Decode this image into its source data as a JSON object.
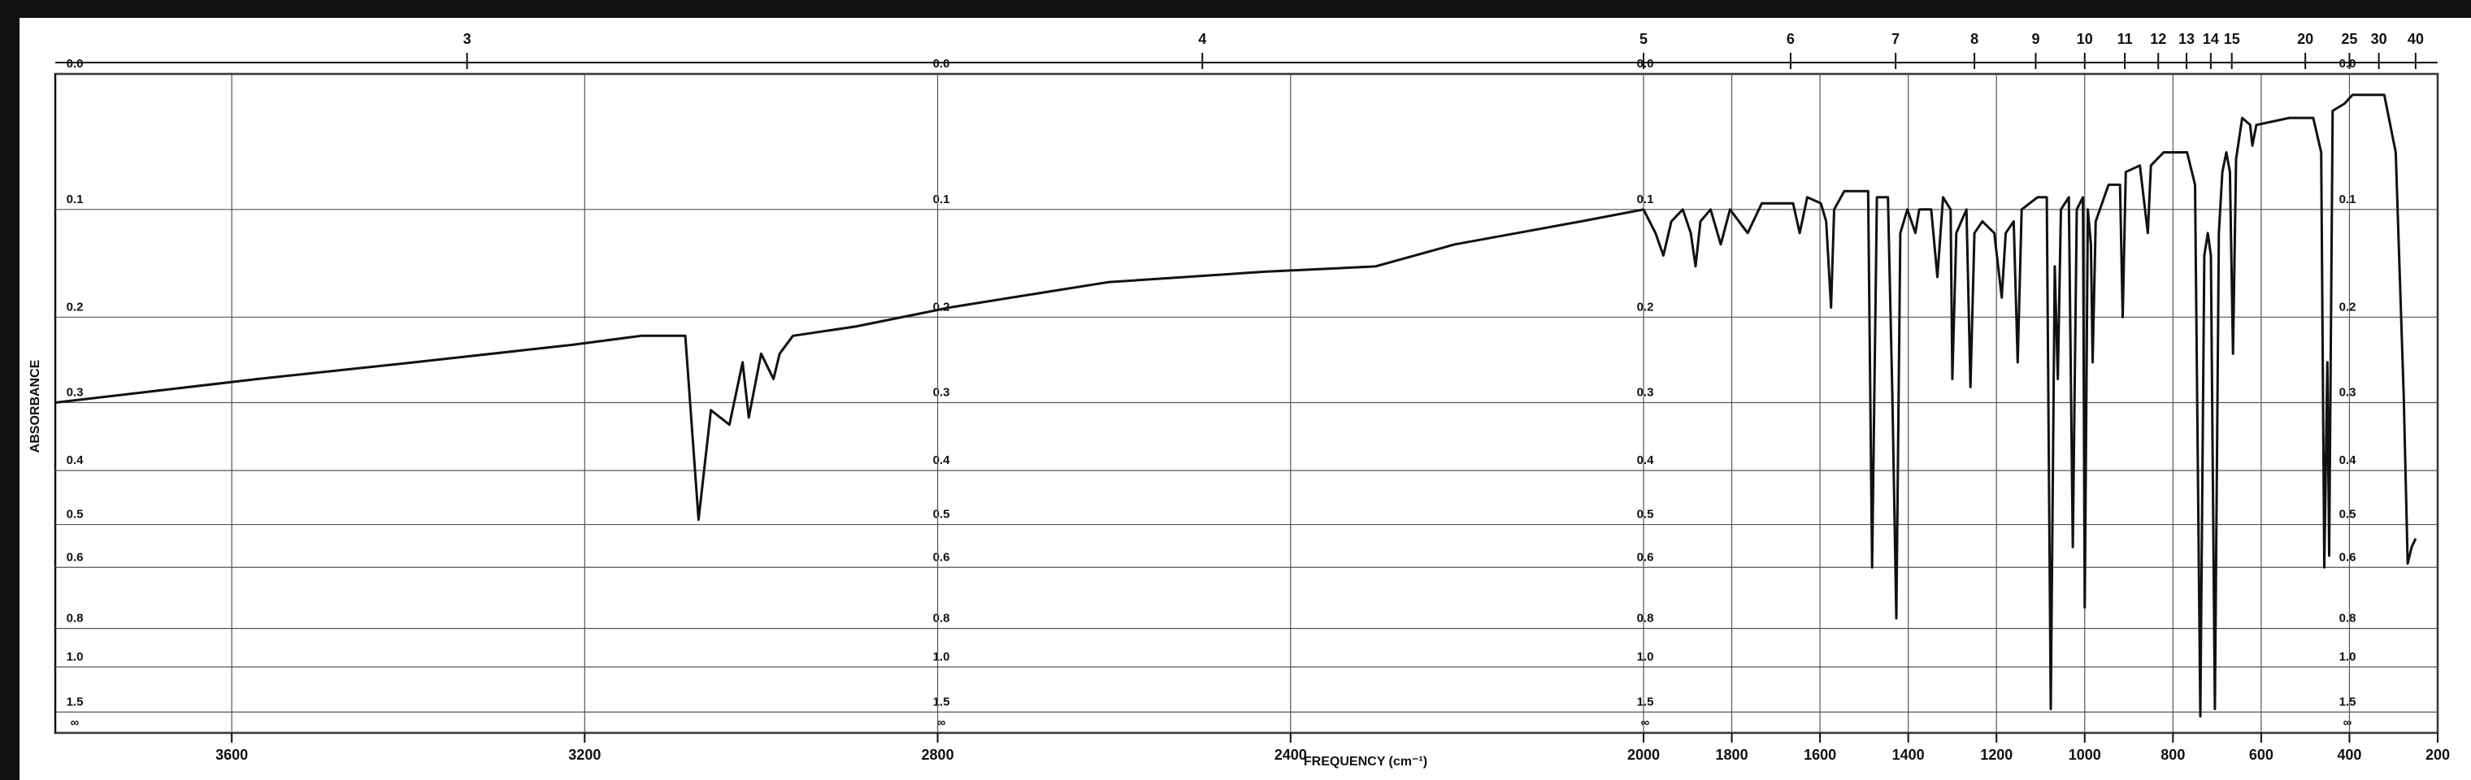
{
  "chart_data": {
    "type": "line",
    "x_label": "FREQUENCY (cm⁻¹)",
    "y_label": "ABSORBANCE",
    "color": "#111111",
    "xlim": [
      3800,
      200
    ],
    "xbreak": 2000,
    "xticks": [
      3600,
      3200,
      2800,
      2400,
      2000,
      1800,
      1600,
      1400,
      1200,
      1000,
      800,
      600,
      400,
      200
    ],
    "x2scale": "wavelength",
    "x2ticks": [
      3,
      4,
      5,
      6,
      7,
      8,
      9,
      10,
      11,
      12,
      13,
      14,
      15,
      20,
      25,
      30,
      40
    ],
    "yscale": "absorbance",
    "ylim": [
      0,
      null
    ],
    "yticks": [
      {
        "value": 0,
        "label": "0.0"
      },
      0.1,
      0.2,
      0.3,
      0.4,
      0.5,
      0.6,
      0.8,
      {
        "value": 1,
        "label": "1.0"
      },
      1.5,
      {
        "value": null,
        "label": "∞"
      }
    ],
    "grid": true,
    "x": [
      3800,
      3571,
      3393,
      3214,
      3136,
      3107,
      3086,
      3071,
      3057,
      3036,
      3021,
      3014,
      3000,
      2986,
      2979,
      2964,
      2893,
      2786,
      2607,
      2429,
      2304,
      2214,
      2071,
      2000,
      1973,
      1955,
      1937,
      1911,
      1893,
      1882,
      1871,
      1848,
      1825,
      1804,
      1764,
      1732,
      1661,
      1646,
      1629,
      1598,
      1586,
      1575,
      1568,
      1545,
      1491,
      1482,
      1471,
      1446,
      1436,
      1427,
      1418,
      1402,
      1384,
      1375,
      1348,
      1334,
      1321,
      1304,
      1300,
      1291,
      1268,
      1259,
      1250,
      1232,
      1205,
      1188,
      1179,
      1161,
      1152,
      1143,
      1107,
      1086,
      1077,
      1068,
      1061,
      1054,
      1036,
      1027,
      1018,
      1004,
      1000,
      993,
      986,
      982,
      975,
      946,
      920,
      914,
      907,
      875,
      857,
      850,
      821,
      768,
      750,
      738,
      729,
      721,
      714,
      705,
      696,
      688,
      679,
      671,
      664,
      657,
      643,
      625,
      620,
      611,
      536,
      482,
      464,
      457,
      450,
      446,
      438,
      411,
      393,
      321,
      295,
      277,
      268,
      259,
      250
    ],
    "values": [
      0.3,
      0.27,
      0.25,
      0.23,
      0.22,
      0.22,
      0.22,
      0.49,
      0.31,
      0.33,
      0.25,
      0.32,
      0.24,
      0.27,
      0.24,
      0.22,
      0.21,
      0.19,
      0.165,
      0.155,
      0.15,
      0.13,
      0.11,
      0.1,
      0.12,
      0.14,
      0.11,
      0.1,
      0.12,
      0.15,
      0.11,
      0.1,
      0.13,
      0.1,
      0.12,
      0.095,
      0.095,
      0.12,
      0.09,
      0.095,
      0.11,
      0.19,
      0.1,
      0.085,
      0.085,
      0.6,
      0.09,
      0.09,
      0.29,
      0.76,
      0.12,
      0.1,
      0.12,
      0.1,
      0.1,
      0.16,
      0.09,
      0.1,
      0.27,
      0.12,
      0.1,
      0.28,
      0.12,
      0.11,
      0.12,
      0.18,
      0.12,
      0.11,
      0.25,
      0.1,
      0.09,
      0.09,
      1.44,
      0.15,
      0.27,
      0.1,
      0.09,
      0.55,
      0.1,
      0.09,
      0.72,
      0.1,
      0.13,
      0.25,
      0.11,
      0.08,
      0.08,
      0.2,
      0.07,
      0.065,
      0.12,
      0.065,
      0.055,
      0.055,
      0.08,
      1.6,
      0.14,
      0.12,
      0.14,
      1.44,
      0.12,
      0.07,
      0.055,
      0.07,
      0.24,
      0.06,
      0.03,
      0.035,
      0.05,
      0.035,
      0.03,
      0.03,
      0.055,
      0.6,
      0.25,
      0.57,
      0.025,
      0.02,
      0.014,
      0.014,
      0.055,
      0.29,
      0.59,
      0.55,
      0.53
    ]
  }
}
